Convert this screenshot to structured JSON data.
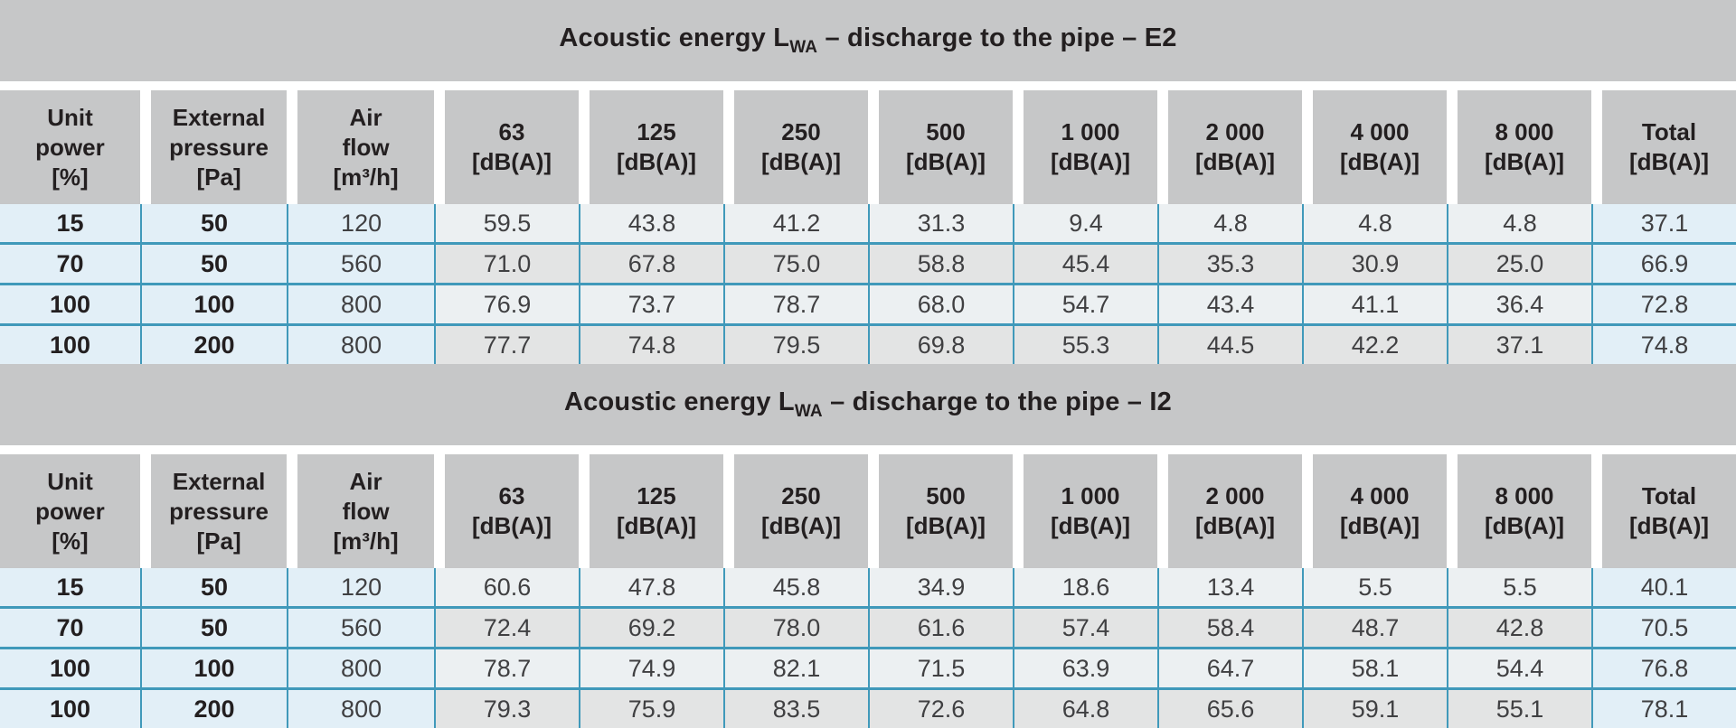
{
  "colors": {
    "band_gray": "#c6c7c8",
    "cell_blue": "#e2eff7",
    "cell_db_light": "#ecf0f2",
    "cell_db_gray": "#e3e4e4",
    "border_teal": "#4099ba",
    "text_dark": "#231f20"
  },
  "tables": [
    {
      "id": "E2",
      "title_prefix": "Acoustic energy L",
      "title_sub": "WA",
      "title_suffix": " – discharge to the pipe – E2",
      "columns": [
        {
          "lines": [
            "Unit",
            "power",
            "[%]"
          ]
        },
        {
          "lines": [
            "External",
            "pressure",
            "[Pa]"
          ]
        },
        {
          "lines": [
            "Air",
            "flow",
            "[m³/h]"
          ]
        },
        {
          "lines": [
            "63",
            "[dB(A)]"
          ]
        },
        {
          "lines": [
            "125",
            "[dB(A)]"
          ]
        },
        {
          "lines": [
            "250",
            "[dB(A)]"
          ]
        },
        {
          "lines": [
            "500",
            "[dB(A)]"
          ]
        },
        {
          "lines": [
            "1 000",
            "[dB(A)]"
          ]
        },
        {
          "lines": [
            "2 000",
            "[dB(A)]"
          ]
        },
        {
          "lines": [
            "4 000",
            "[dB(A)]"
          ]
        },
        {
          "lines": [
            "8 000",
            "[dB(A)]"
          ]
        },
        {
          "lines": [
            "Total",
            "[dB(A)]"
          ]
        }
      ],
      "rows": [
        [
          "15",
          "50",
          "120",
          "59.5",
          "43.8",
          "41.2",
          "31.3",
          "9.4",
          "4.8",
          "4.8",
          "4.8",
          "37.1"
        ],
        [
          "70",
          "50",
          "560",
          "71.0",
          "67.8",
          "75.0",
          "58.8",
          "45.4",
          "35.3",
          "30.9",
          "25.0",
          "66.9"
        ],
        [
          "100",
          "100",
          "800",
          "76.9",
          "73.7",
          "78.7",
          "68.0",
          "54.7",
          "43.4",
          "41.1",
          "36.4",
          "72.8"
        ],
        [
          "100",
          "200",
          "800",
          "77.7",
          "74.8",
          "79.5",
          "69.8",
          "55.3",
          "44.5",
          "42.2",
          "37.1",
          "74.8"
        ]
      ]
    },
    {
      "id": "I2",
      "title_prefix": "Acoustic energy L",
      "title_sub": "WA",
      "title_suffix": " – discharge to the pipe – I2",
      "columns": [
        {
          "lines": [
            "Unit",
            "power",
            "[%]"
          ]
        },
        {
          "lines": [
            "External",
            "pressure",
            "[Pa]"
          ]
        },
        {
          "lines": [
            "Air",
            "flow",
            "[m³/h]"
          ]
        },
        {
          "lines": [
            "63",
            "[dB(A)]"
          ]
        },
        {
          "lines": [
            "125",
            "[dB(A)]"
          ]
        },
        {
          "lines": [
            "250",
            "[dB(A)]"
          ]
        },
        {
          "lines": [
            "500",
            "[dB(A)]"
          ]
        },
        {
          "lines": [
            "1 000",
            "[dB(A)]"
          ]
        },
        {
          "lines": [
            "2 000",
            "[dB(A)]"
          ]
        },
        {
          "lines": [
            "4 000",
            "[dB(A)]"
          ]
        },
        {
          "lines": [
            "8 000",
            "[dB(A)]"
          ]
        },
        {
          "lines": [
            "Total",
            "[dB(A)]"
          ]
        }
      ],
      "rows": [
        [
          "15",
          "50",
          "120",
          "60.6",
          "47.8",
          "45.8",
          "34.9",
          "18.6",
          "13.4",
          "5.5",
          "5.5",
          "40.1"
        ],
        [
          "70",
          "50",
          "560",
          "72.4",
          "69.2",
          "78.0",
          "61.6",
          "57.4",
          "58.4",
          "48.7",
          "42.8",
          "70.5"
        ],
        [
          "100",
          "100",
          "800",
          "78.7",
          "74.9",
          "82.1",
          "71.5",
          "63.9",
          "64.7",
          "58.1",
          "54.4",
          "76.8"
        ],
        [
          "100",
          "200",
          "800",
          "79.3",
          "75.9",
          "83.5",
          "72.6",
          "64.8",
          "65.6",
          "59.1",
          "55.1",
          "78.1"
        ]
      ]
    }
  ]
}
